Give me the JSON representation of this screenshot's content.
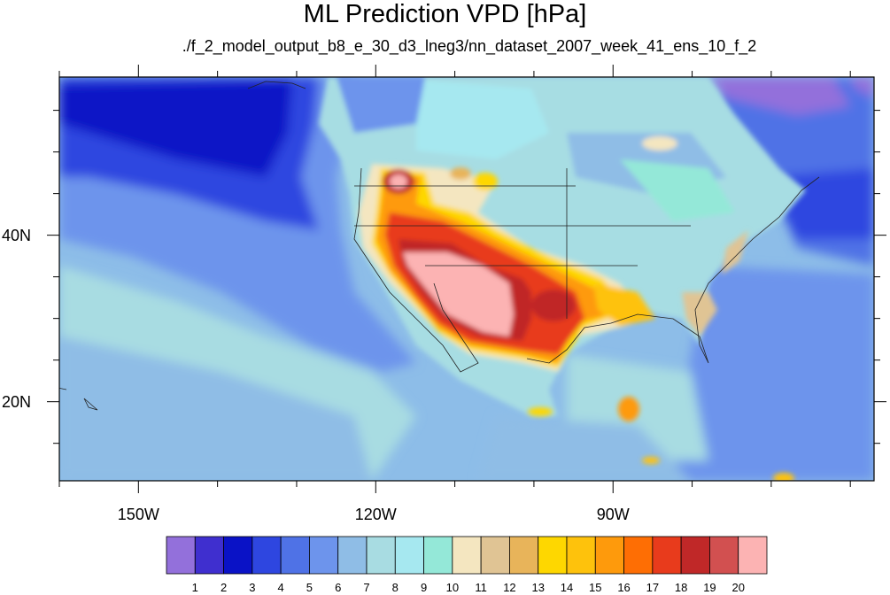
{
  "title": "ML Prediction VPD [hPa]",
  "subtitle": "./f_2_model_output_b8_e_30_d3_lneg3/nn_dataset_2007_week_41_ens_10_f_2",
  "map": {
    "projection": "cylindrical-equidistant",
    "lon_range": [
      -160,
      -57
    ],
    "lat_range": [
      10.5,
      59
    ],
    "lon_ticks": [
      {
        "value": -150,
        "label": "150W"
      },
      {
        "value": -120,
        "label": "120W"
      },
      {
        "value": -90,
        "label": "90W"
      }
    ],
    "lat_ticks": [
      {
        "value": 40,
        "label": "40N"
      },
      {
        "value": 20,
        "label": "20N"
      }
    ],
    "ocean_color": "#8dbde8",
    "land_color": "#a7dde3"
  },
  "colorbar": {
    "labels": [
      "1",
      "2",
      "3",
      "4",
      "5",
      "6",
      "7",
      "8",
      "9",
      "10",
      "11",
      "12",
      "13",
      "14",
      "15",
      "16",
      "17",
      "18",
      "19",
      "20"
    ],
    "colors": [
      "#9370db",
      "#3f2fcf",
      "#0a12c6",
      "#2e46e0",
      "#4f72e6",
      "#6d94ec",
      "#8fbde6",
      "#a8dce2",
      "#a6e8f0",
      "#94e8d8",
      "#f4e6c0",
      "#e0c494",
      "#e8b45a",
      "#fed700",
      "#fec20c",
      "#fe9a0c",
      "#fe6e04",
      "#e83b1c",
      "#c02828",
      "#d25050",
      "#fcb3b3"
    ]
  }
}
